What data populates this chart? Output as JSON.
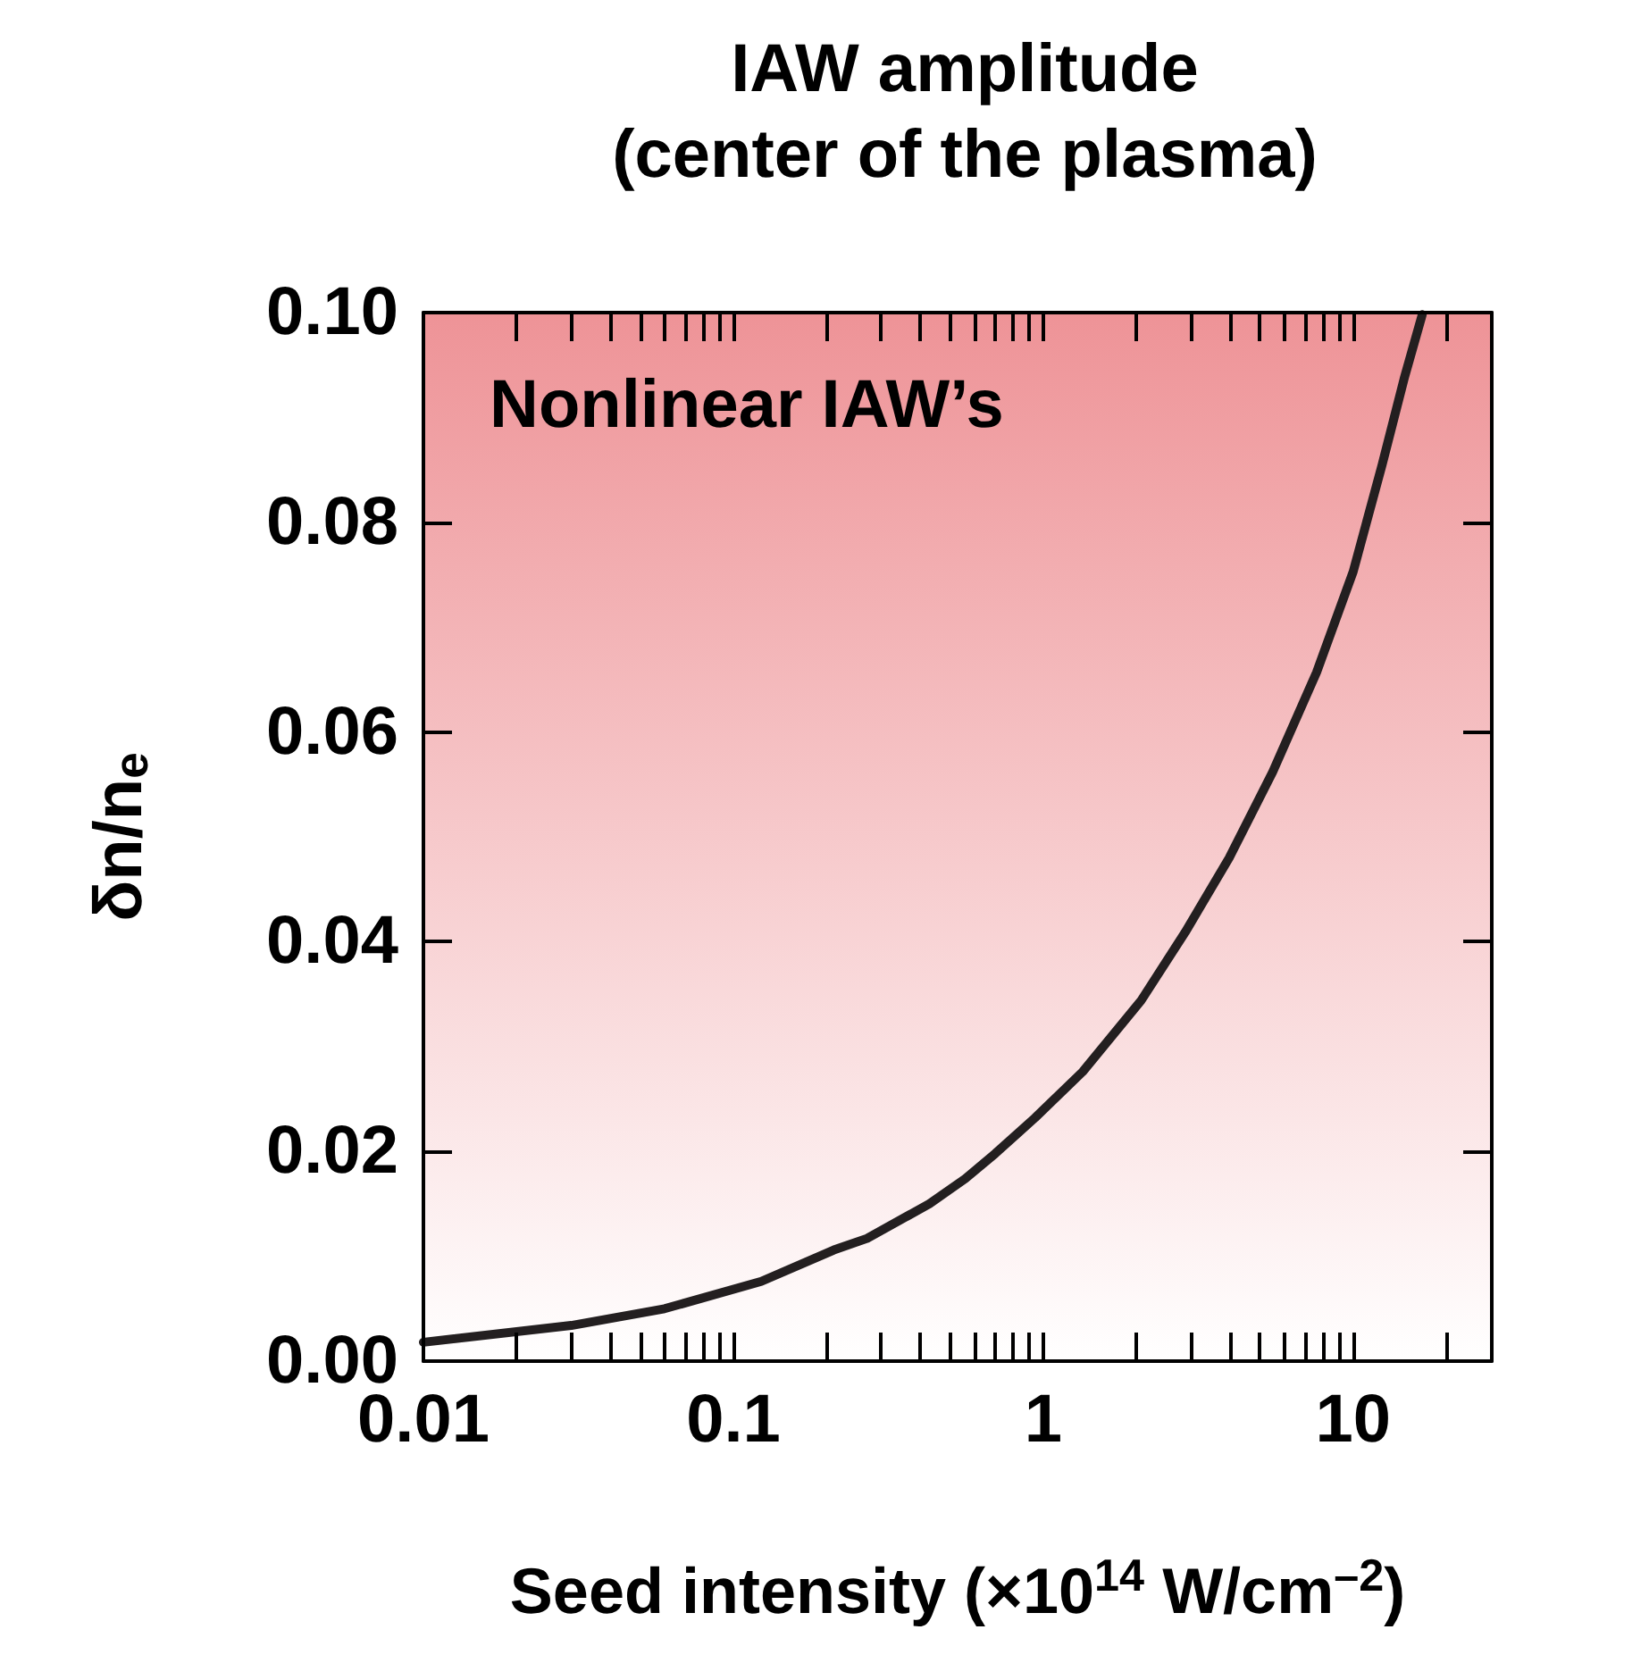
{
  "chart_data": {
    "type": "line",
    "title": "IAW amplitude\n(center of the plasma)",
    "xlabel": "Seed intensity (×10$^{14}$ W/cm$^{–2}$)",
    "ylabel": "δn/n$_{e}$",
    "log": "x",
    "xlim": [
      0.01,
      28
    ],
    "ylim": [
      0,
      0.1
    ],
    "xticks": [
      0.01,
      {
        "value": 0.02,
        "label": null
      },
      {
        "value": 0.03,
        "label": null
      },
      {
        "value": 0.04,
        "label": null
      },
      {
        "value": 0.05,
        "label": null
      },
      {
        "value": 0.06,
        "label": null
      },
      {
        "value": 0.07,
        "label": null
      },
      {
        "value": 0.08,
        "label": null
      },
      {
        "value": 0.09,
        "label": null
      },
      0.1,
      {
        "value": 0.2,
        "label": null
      },
      {
        "value": 0.3,
        "label": null
      },
      {
        "value": 0.4,
        "label": null
      },
      {
        "value": 0.5,
        "label": null
      },
      {
        "value": 0.6,
        "label": null
      },
      {
        "value": 0.7,
        "label": null
      },
      {
        "value": 0.8,
        "label": null
      },
      {
        "value": 0.9,
        "label": null
      },
      1,
      {
        "value": 2,
        "label": null
      },
      {
        "value": 3,
        "label": null
      },
      {
        "value": 4,
        "label": null
      },
      {
        "value": 5,
        "label": null
      },
      {
        "value": 6,
        "label": null
      },
      {
        "value": 7,
        "label": null
      },
      {
        "value": 8,
        "label": null
      },
      {
        "value": 9,
        "label": null
      },
      10,
      {
        "value": 20,
        "label": null
      }
    ],
    "yticks": [
      {
        "value": 0,
        "label": "0.00"
      },
      0.02,
      0.04,
      0.06,
      0.08,
      {
        "value": 0.1,
        "label": "0.10"
      }
    ],
    "grid": false,
    "marker": "none",
    "line_style": "solid",
    "bands": [
      {
        "axis": "y",
        "from": 0,
        "to": 0.1,
        "label": "Nonlinear IAW’s",
        "color": "#ee9397"
      }
    ],
    "series": [
      {
        "color": "#231f20",
        "x": [
          0.01,
          0.03,
          0.06,
          0.123,
          0.211,
          0.27,
          0.429,
          0.56,
          0.7,
          0.94,
          1.34,
          2.07,
          2.87,
          3.98,
          5.5,
          7.62,
          10,
          12.4,
          14.6,
          16.7
        ],
        "values": [
          0.0018,
          0.0034,
          0.005,
          0.0076,
          0.0106,
          0.0117,
          0.015,
          0.0174,
          0.0198,
          0.0232,
          0.0276,
          0.0344,
          0.0409,
          0.048,
          0.0562,
          0.0657,
          0.0753,
          0.0855,
          0.0937,
          0.0998
        ]
      }
    ]
  }
}
